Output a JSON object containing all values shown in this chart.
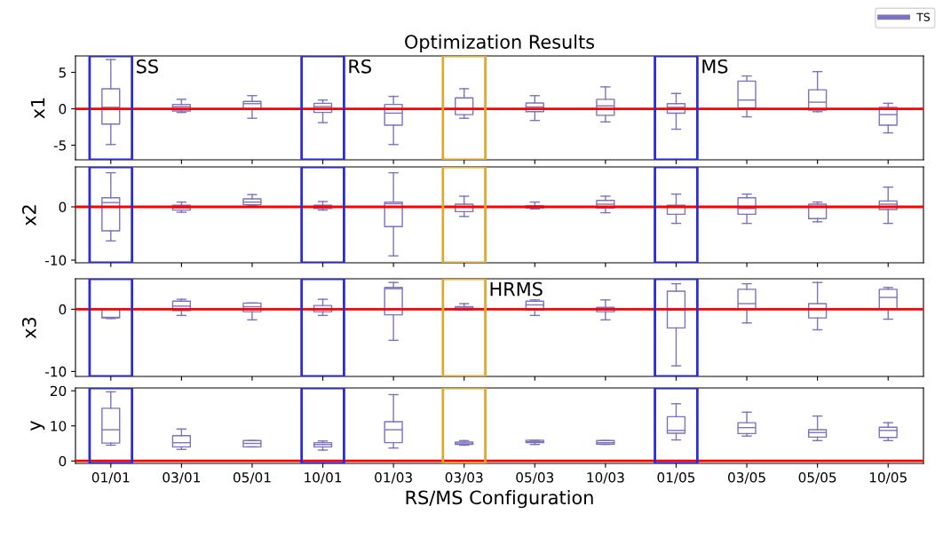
{
  "chart_data": [
    {
      "type": "box",
      "title": "Optimization Results",
      "ylabel": "x1",
      "ylim": [
        -7,
        7.25
      ],
      "yticks": [
        -5,
        0,
        5
      ],
      "tick_labels": "y",
      "legend": "top right",
      "series": [
        {
          "name": "TS",
          "color": "#7b72c0",
          "boxes": [
            {
              "low": -4.9,
              "q1": -2.1,
              "median": 0.2,
              "q3": 2.75,
              "high": 6.75
            },
            {
              "low": -0.5,
              "q1": -0.3,
              "median": 0.3,
              "q3": 0.6,
              "high": 1.3
            },
            {
              "low": -1.3,
              "q1": -0.1,
              "median": 0.7,
              "q3": 1.0,
              "high": 1.8
            },
            {
              "low": -1.9,
              "q1": -0.5,
              "median": 0.3,
              "q3": 0.75,
              "high": 1.2
            },
            {
              "low": -4.9,
              "q1": -2.25,
              "median": -0.6,
              "q3": 0.6,
              "high": 1.7
            },
            {
              "low": -1.3,
              "q1": -0.8,
              "median": 0,
              "q3": 1.5,
              "high": 2.75
            },
            {
              "low": -1.6,
              "q1": -0.4,
              "median": 0.25,
              "q3": 0.8,
              "high": 1.8
            },
            {
              "low": -1.8,
              "q1": -0.9,
              "median": 0.4,
              "q3": 1.3,
              "high": 3.0
            },
            {
              "low": -2.8,
              "q1": -0.6,
              "median": 0.2,
              "q3": 0.7,
              "high": 2.1
            },
            {
              "low": -1.1,
              "q1": 0.1,
              "median": 1.2,
              "q3": 3.8,
              "high": 4.5
            },
            {
              "low": -0.4,
              "q1": -0.2,
              "median": 0.9,
              "q3": 2.6,
              "high": 5.1
            },
            {
              "low": -3.3,
              "q1": -2.25,
              "median": -0.8,
              "q3": 0.2,
              "high": 0.75
            }
          ]
        }
      ],
      "ref_lines": [
        {
          "axis": "y",
          "value": 0,
          "color": "#ff0000"
        }
      ],
      "annotations": [
        "SS",
        "RS",
        "MS"
      ]
    },
    {
      "type": "box",
      "ylabel": "x2",
      "ylim": [
        -10.5,
        7.5
      ],
      "yticks": [
        -10,
        0
      ],
      "tick_labels": "y",
      "series": [
        {
          "color": "#7b72c0",
          "boxes": [
            {
              "low": -6.4,
              "q1": -4.5,
              "median": 0.8,
              "q3": 1.7,
              "high": 6.4
            },
            {
              "low": -1.0,
              "q1": -0.6,
              "median": -0.2,
              "q3": 0.3,
              "high": 0.9
            },
            {
              "low": 0.3,
              "q1": 0.4,
              "median": 0.9,
              "q3": 1.5,
              "high": 2.3
            },
            {
              "low": -0.6,
              "q1": -0.3,
              "median": 0.05,
              "q3": 0.3,
              "high": 1.0
            },
            {
              "low": -9.2,
              "q1": -3.7,
              "median": 0.6,
              "q3": 0.9,
              "high": 6.4
            },
            {
              "low": -1.8,
              "q1": -0.9,
              "median": 0,
              "q3": 0.5,
              "high": 2.0
            },
            {
              "low": -0.4,
              "q1": -0.2,
              "median": 0,
              "q3": 0.2,
              "high": 0.9
            },
            {
              "low": -1.1,
              "q1": -0.2,
              "median": 0.5,
              "q3": 1.2,
              "high": 2.0
            },
            {
              "low": -3.1,
              "q1": -1.4,
              "median": 0.1,
              "q3": 0.3,
              "high": 2.4
            },
            {
              "low": -3.1,
              "q1": -1.4,
              "median": -0.3,
              "q3": 1.7,
              "high": 2.4
            },
            {
              "low": -2.8,
              "q1": -2.2,
              "median": 0.1,
              "q3": 0.5,
              "high": 0.9
            },
            {
              "low": -3.1,
              "q1": -0.5,
              "median": 0.5,
              "q3": 1.1,
              "high": 3.7
            }
          ]
        }
      ],
      "ref_lines": [
        {
          "axis": "y",
          "value": 0,
          "color": "#ff0000"
        }
      ]
    },
    {
      "type": "box",
      "ylabel": "x3",
      "ylim": [
        -10.8,
        4.9
      ],
      "yticks": [
        -10,
        0
      ],
      "tick_labels": "y",
      "series": [
        {
          "color": "#7b72c0",
          "boxes": [
            {
              "low": -1.5,
              "q1": -1.4,
              "median": -1.3,
              "q3": 0,
              "high": 0
            },
            {
              "low": -1.0,
              "q1": -0.2,
              "median": 0.5,
              "q3": 1.3,
              "high": 1.6
            },
            {
              "low": -1.7,
              "q1": -0.4,
              "median": 0.4,
              "q3": 1.0,
              "high": 1.0
            },
            {
              "low": -1.0,
              "q1": -0.4,
              "median": 0.1,
              "q3": 0.6,
              "high": 1.6
            },
            {
              "low": -5.0,
              "q1": -0.9,
              "median": 3.3,
              "q3": 3.5,
              "high": 4.3
            },
            {
              "low": -0.05,
              "q1": -0.05,
              "median": 0.2,
              "q3": 0.4,
              "high": 0.9
            },
            {
              "low": -1.0,
              "q1": -0.1,
              "median": 0.7,
              "q3": 1.3,
              "high": 1.5
            },
            {
              "low": -1.7,
              "q1": -0.4,
              "median": -0.05,
              "q3": 0.3,
              "high": 1.5
            },
            {
              "low": -9.1,
              "q1": -3.0,
              "median": -0.1,
              "q3": 2.9,
              "high": 4.1
            },
            {
              "low": -2.2,
              "q1": 0.1,
              "median": 0.9,
              "q3": 3.2,
              "high": 4.1
            },
            {
              "low": -3.3,
              "q1": -1.4,
              "median": 0.1,
              "q3": 0.9,
              "high": 4.3
            },
            {
              "low": -1.6,
              "q1": 0.1,
              "median": 1.9,
              "q3": 3.2,
              "high": 3.5
            }
          ]
        }
      ],
      "ref_lines": [
        {
          "axis": "y",
          "value": 0,
          "color": "#ff0000"
        }
      ],
      "annotations": [
        "HRMS"
      ]
    },
    {
      "type": "box",
      "ylabel": "y",
      "xlabel": "RS/MS Configuration",
      "categories": [
        "01/01",
        "03/01",
        "05/01",
        "10/01",
        "01/03",
        "03/03",
        "05/03",
        "10/03",
        "01/05",
        "03/05",
        "05/05",
        "10/05"
      ],
      "ylim": [
        -0.7,
        20.8
      ],
      "yticks": [
        0,
        10,
        20
      ],
      "series": [
        {
          "color": "#7b72c0",
          "boxes": [
            {
              "low": 4.5,
              "q1": 5.1,
              "median": 8.9,
              "q3": 15.0,
              "high": 19.7
            },
            {
              "low": 3.3,
              "q1": 4.0,
              "median": 5.2,
              "q3": 7.2,
              "high": 9.1
            },
            {
              "low": 4.0,
              "q1": 4.0,
              "median": 5.0,
              "q3": 5.8,
              "high": 5.8
            },
            {
              "low": 3.1,
              "q1": 4.0,
              "median": 4.7,
              "q3": 5.2,
              "high": 5.7
            },
            {
              "low": 3.7,
              "q1": 5.2,
              "median": 8.9,
              "q3": 11.2,
              "high": 18.9
            },
            {
              "low": 4.5,
              "q1": 4.7,
              "median": 5.1,
              "q3": 5.4,
              "high": 5.8
            },
            {
              "low": 4.7,
              "q1": 5.2,
              "median": 5.5,
              "q3": 5.9,
              "high": 5.9
            },
            {
              "low": 4.7,
              "q1": 4.8,
              "median": 5.2,
              "q3": 5.8,
              "high": 5.8
            },
            {
              "low": 6.0,
              "q1": 7.9,
              "median": 8.7,
              "q3": 12.6,
              "high": 16.3
            },
            {
              "low": 7.1,
              "q1": 7.8,
              "median": 9.5,
              "q3": 10.9,
              "high": 13.9
            },
            {
              "low": 5.8,
              "q1": 6.8,
              "median": 8.1,
              "q3": 8.9,
              "high": 12.8
            },
            {
              "low": 5.8,
              "q1": 6.7,
              "median": 8.7,
              "q3": 9.6,
              "high": 10.9
            }
          ]
        }
      ],
      "ref_lines": [
        {
          "axis": "y",
          "value": 0,
          "color": "#ff0000"
        }
      ]
    }
  ]
}
